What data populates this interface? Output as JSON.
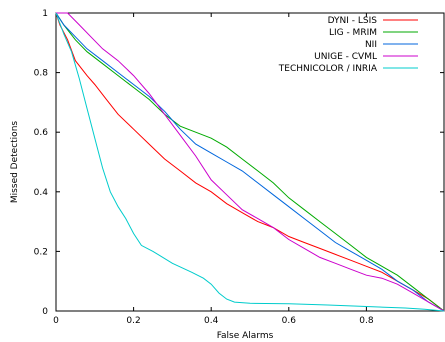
{
  "chart_data": {
    "type": "line",
    "title": "",
    "xlabel": "False Alarms",
    "ylabel": "Missed Detections",
    "xlim": [
      0,
      1
    ],
    "ylim": [
      0,
      1
    ],
    "x_ticks": [
      "0",
      "0.2",
      "0.4",
      "0.6",
      "0.8"
    ],
    "y_ticks": [
      "0",
      "0.2",
      "0.4",
      "0.6",
      "0.8",
      "1"
    ],
    "grid": false,
    "legend_position": "top-right",
    "series": [
      {
        "name": "DYNI - LSIS",
        "color": "#ff0000",
        "points": [
          [
            0,
            1
          ],
          [
            0.01,
            0.96
          ],
          [
            0.03,
            0.91
          ],
          [
            0.05,
            0.84
          ],
          [
            0.08,
            0.79
          ],
          [
            0.1,
            0.76
          ],
          [
            0.13,
            0.71
          ],
          [
            0.16,
            0.66
          ],
          [
            0.2,
            0.61
          ],
          [
            0.24,
            0.56
          ],
          [
            0.28,
            0.51
          ],
          [
            0.32,
            0.47
          ],
          [
            0.36,
            0.43
          ],
          [
            0.4,
            0.4
          ],
          [
            0.44,
            0.36
          ],
          [
            0.48,
            0.33
          ],
          [
            0.52,
            0.3
          ],
          [
            0.56,
            0.28
          ],
          [
            0.6,
            0.25
          ],
          [
            0.64,
            0.23
          ],
          [
            0.68,
            0.21
          ],
          [
            0.72,
            0.19
          ],
          [
            0.76,
            0.17
          ],
          [
            0.8,
            0.15
          ],
          [
            0.84,
            0.13
          ],
          [
            0.88,
            0.1
          ],
          [
            0.92,
            0.07
          ],
          [
            0.96,
            0.04
          ],
          [
            1.0,
            0.0
          ]
        ]
      },
      {
        "name": "LIG - MRIM",
        "color": "#00aa00",
        "points": [
          [
            0,
            1
          ],
          [
            0.02,
            0.96
          ],
          [
            0.05,
            0.91
          ],
          [
            0.08,
            0.87
          ],
          [
            0.12,
            0.83
          ],
          [
            0.16,
            0.79
          ],
          [
            0.2,
            0.75
          ],
          [
            0.24,
            0.71
          ],
          [
            0.28,
            0.66
          ],
          [
            0.32,
            0.62
          ],
          [
            0.36,
            0.6
          ],
          [
            0.4,
            0.58
          ],
          [
            0.44,
            0.55
          ],
          [
            0.48,
            0.51
          ],
          [
            0.52,
            0.47
          ],
          [
            0.56,
            0.43
          ],
          [
            0.6,
            0.38
          ],
          [
            0.64,
            0.34
          ],
          [
            0.68,
            0.3
          ],
          [
            0.72,
            0.26
          ],
          [
            0.76,
            0.22
          ],
          [
            0.8,
            0.18
          ],
          [
            0.84,
            0.15
          ],
          [
            0.88,
            0.12
          ],
          [
            0.92,
            0.08
          ],
          [
            0.96,
            0.04
          ],
          [
            1.0,
            0.0
          ]
        ]
      },
      {
        "name": "NII",
        "color": "#0066dd",
        "points": [
          [
            0,
            1
          ],
          [
            0.02,
            0.96
          ],
          [
            0.05,
            0.92
          ],
          [
            0.08,
            0.88
          ],
          [
            0.12,
            0.84
          ],
          [
            0.16,
            0.8
          ],
          [
            0.2,
            0.76
          ],
          [
            0.24,
            0.72
          ],
          [
            0.28,
            0.67
          ],
          [
            0.32,
            0.61
          ],
          [
            0.36,
            0.56
          ],
          [
            0.4,
            0.53
          ],
          [
            0.44,
            0.5
          ],
          [
            0.48,
            0.47
          ],
          [
            0.52,
            0.43
          ],
          [
            0.56,
            0.39
          ],
          [
            0.6,
            0.35
          ],
          [
            0.64,
            0.31
          ],
          [
            0.68,
            0.27
          ],
          [
            0.72,
            0.23
          ],
          [
            0.76,
            0.2
          ],
          [
            0.8,
            0.17
          ],
          [
            0.84,
            0.14
          ],
          [
            0.88,
            0.1
          ],
          [
            0.92,
            0.07
          ],
          [
            0.96,
            0.03
          ],
          [
            1.0,
            0.0
          ]
        ]
      },
      {
        "name": "UNIGE - CVML",
        "color": "#cc00cc",
        "points": [
          [
            0,
            1
          ],
          [
            0.03,
            1.0
          ],
          [
            0.06,
            0.96
          ],
          [
            0.09,
            0.92
          ],
          [
            0.12,
            0.88
          ],
          [
            0.16,
            0.84
          ],
          [
            0.2,
            0.79
          ],
          [
            0.24,
            0.73
          ],
          [
            0.28,
            0.66
          ],
          [
            0.32,
            0.59
          ],
          [
            0.36,
            0.52
          ],
          [
            0.4,
            0.44
          ],
          [
            0.44,
            0.39
          ],
          [
            0.48,
            0.34
          ],
          [
            0.52,
            0.31
          ],
          [
            0.56,
            0.28
          ],
          [
            0.6,
            0.24
          ],
          [
            0.64,
            0.21
          ],
          [
            0.68,
            0.18
          ],
          [
            0.72,
            0.16
          ],
          [
            0.76,
            0.14
          ],
          [
            0.8,
            0.12
          ],
          [
            0.84,
            0.11
          ],
          [
            0.88,
            0.09
          ],
          [
            0.92,
            0.06
          ],
          [
            0.96,
            0.03
          ],
          [
            1.0,
            0.0
          ]
        ]
      },
      {
        "name": "TECHNICOLOR / INRIA",
        "color": "#00cccc",
        "points": [
          [
            0,
            1
          ],
          [
            0.02,
            0.93
          ],
          [
            0.04,
            0.87
          ],
          [
            0.06,
            0.78
          ],
          [
            0.08,
            0.68
          ],
          [
            0.1,
            0.58
          ],
          [
            0.12,
            0.48
          ],
          [
            0.14,
            0.4
          ],
          [
            0.16,
            0.35
          ],
          [
            0.18,
            0.31
          ],
          [
            0.2,
            0.26
          ],
          [
            0.22,
            0.22
          ],
          [
            0.25,
            0.2
          ],
          [
            0.3,
            0.16
          ],
          [
            0.35,
            0.13
          ],
          [
            0.38,
            0.11
          ],
          [
            0.4,
            0.09
          ],
          [
            0.42,
            0.06
          ],
          [
            0.44,
            0.04
          ],
          [
            0.46,
            0.03
          ],
          [
            0.5,
            0.026
          ],
          [
            0.6,
            0.024
          ],
          [
            0.7,
            0.02
          ],
          [
            0.8,
            0.015
          ],
          [
            0.9,
            0.01
          ],
          [
            0.95,
            0.006
          ],
          [
            1.0,
            0.0
          ]
        ]
      }
    ]
  }
}
